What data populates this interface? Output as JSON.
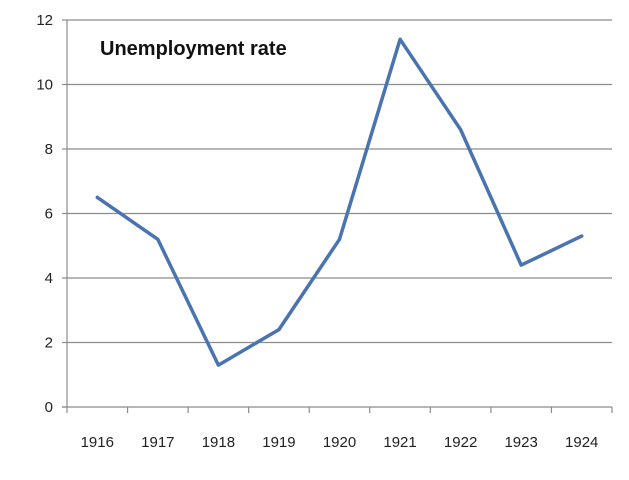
{
  "chart_data": {
    "type": "line",
    "title": "Unemployment rate",
    "xlabel": "",
    "ylabel": "",
    "categories": [
      "1916",
      "1917",
      "1918",
      "1919",
      "1920",
      "1921",
      "1922",
      "1923",
      "1924"
    ],
    "series": [
      {
        "values": [
          6.5,
          5.2,
          1.3,
          2.4,
          5.2,
          11.4,
          8.6,
          4.4,
          5.3
        ],
        "color": "#4a74b0"
      }
    ],
    "ylim": [
      0,
      12
    ],
    "yticks": [
      "0",
      "2",
      "4",
      "6",
      "8",
      "10",
      "12"
    ],
    "grid": true,
    "legend": "none",
    "colors": {
      "gridline": "#8c8c8c",
      "axis": "#8c8c8c",
      "text": "#222222"
    }
  }
}
